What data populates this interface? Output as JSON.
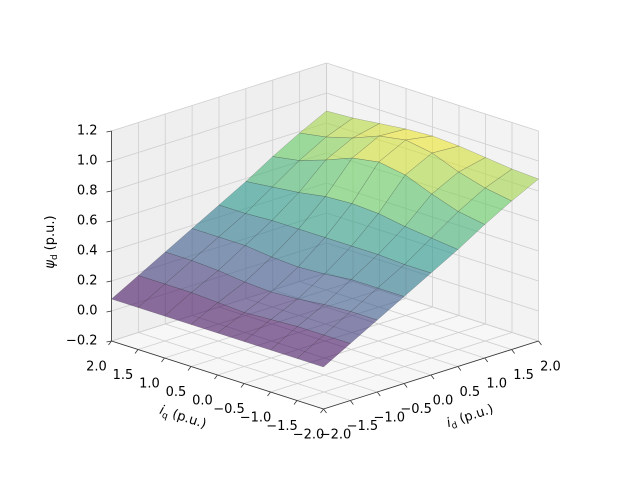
{
  "chart_data": {
    "type": "surface",
    "x": [
      -2,
      -1.5,
      -1,
      -0.5,
      0,
      0.5,
      1,
      1.5,
      2
    ],
    "y": [
      -2,
      -1.5,
      -1,
      -0.5,
      0,
      0.5,
      1,
      1.5,
      2
    ],
    "z": [
      [
        0.08,
        0.18,
        0.28,
        0.38,
        0.48,
        0.58,
        0.69,
        0.79,
        0.88
      ],
      [
        0.08,
        0.18,
        0.28,
        0.38,
        0.48,
        0.6,
        0.72,
        0.82,
        0.89
      ],
      [
        0.08,
        0.18,
        0.27,
        0.38,
        0.49,
        0.62,
        0.78,
        0.87,
        0.91
      ],
      [
        0.08,
        0.17,
        0.25,
        0.36,
        0.49,
        0.65,
        0.85,
        0.94,
        0.93
      ],
      [
        0.08,
        0.16,
        0.24,
        0.35,
        0.49,
        0.66,
        0.88,
        0.97,
        0.94
      ],
      [
        0.08,
        0.17,
        0.25,
        0.36,
        0.49,
        0.65,
        0.85,
        0.94,
        0.93
      ],
      [
        0.08,
        0.18,
        0.27,
        0.38,
        0.49,
        0.62,
        0.78,
        0.87,
        0.91
      ],
      [
        0.08,
        0.18,
        0.28,
        0.38,
        0.48,
        0.6,
        0.72,
        0.82,
        0.89
      ],
      [
        0.08,
        0.18,
        0.28,
        0.38,
        0.48,
        0.58,
        0.69,
        0.79,
        0.88
      ]
    ],
    "xlabel": {
      "symbol": "i",
      "subscript": "d",
      "unit": "(p.u.)"
    },
    "ylabel": {
      "symbol": "i",
      "subscript": "q",
      "unit": "(p.u.)"
    },
    "zlabel": {
      "symbol": "ψ",
      "subscript": "d",
      "unit": "(p.u.)"
    },
    "xlim": [
      -2,
      2
    ],
    "ylim": [
      -2,
      2
    ],
    "zlim": [
      -0.2,
      1.2
    ],
    "xticks": [
      {
        "value": -2,
        "label": "−2.0"
      },
      {
        "value": -1.5,
        "label": "−1.5"
      },
      {
        "value": -1,
        "label": "−1.0"
      },
      {
        "value": -0.5,
        "label": "−0.5"
      },
      {
        "value": 0,
        "label": "0.0"
      },
      0.5,
      {
        "value": 1,
        "label": "1.0"
      },
      1.5,
      {
        "value": 2,
        "label": "2.0"
      }
    ],
    "yticks": [
      {
        "value": -2,
        "label": "−2.0"
      },
      {
        "value": -1.5,
        "label": "−1.5"
      },
      {
        "value": -1,
        "label": "−1.0"
      },
      {
        "value": -0.5,
        "label": "−0.5"
      },
      {
        "value": 0,
        "label": "0.0"
      },
      0.5,
      {
        "value": 1,
        "label": "1.0"
      },
      1.5,
      {
        "value": 2,
        "label": "2.0"
      }
    ],
    "zticks": [
      {
        "value": -0.2,
        "label": "−0.2"
      },
      {
        "value": 0,
        "label": "0.0"
      },
      0.2,
      0.4,
      0.6,
      0.8,
      {
        "value": 1,
        "label": "1.0"
      },
      1.2
    ],
    "colormap": "viridis",
    "alpha": 0.6,
    "grid": true
  }
}
